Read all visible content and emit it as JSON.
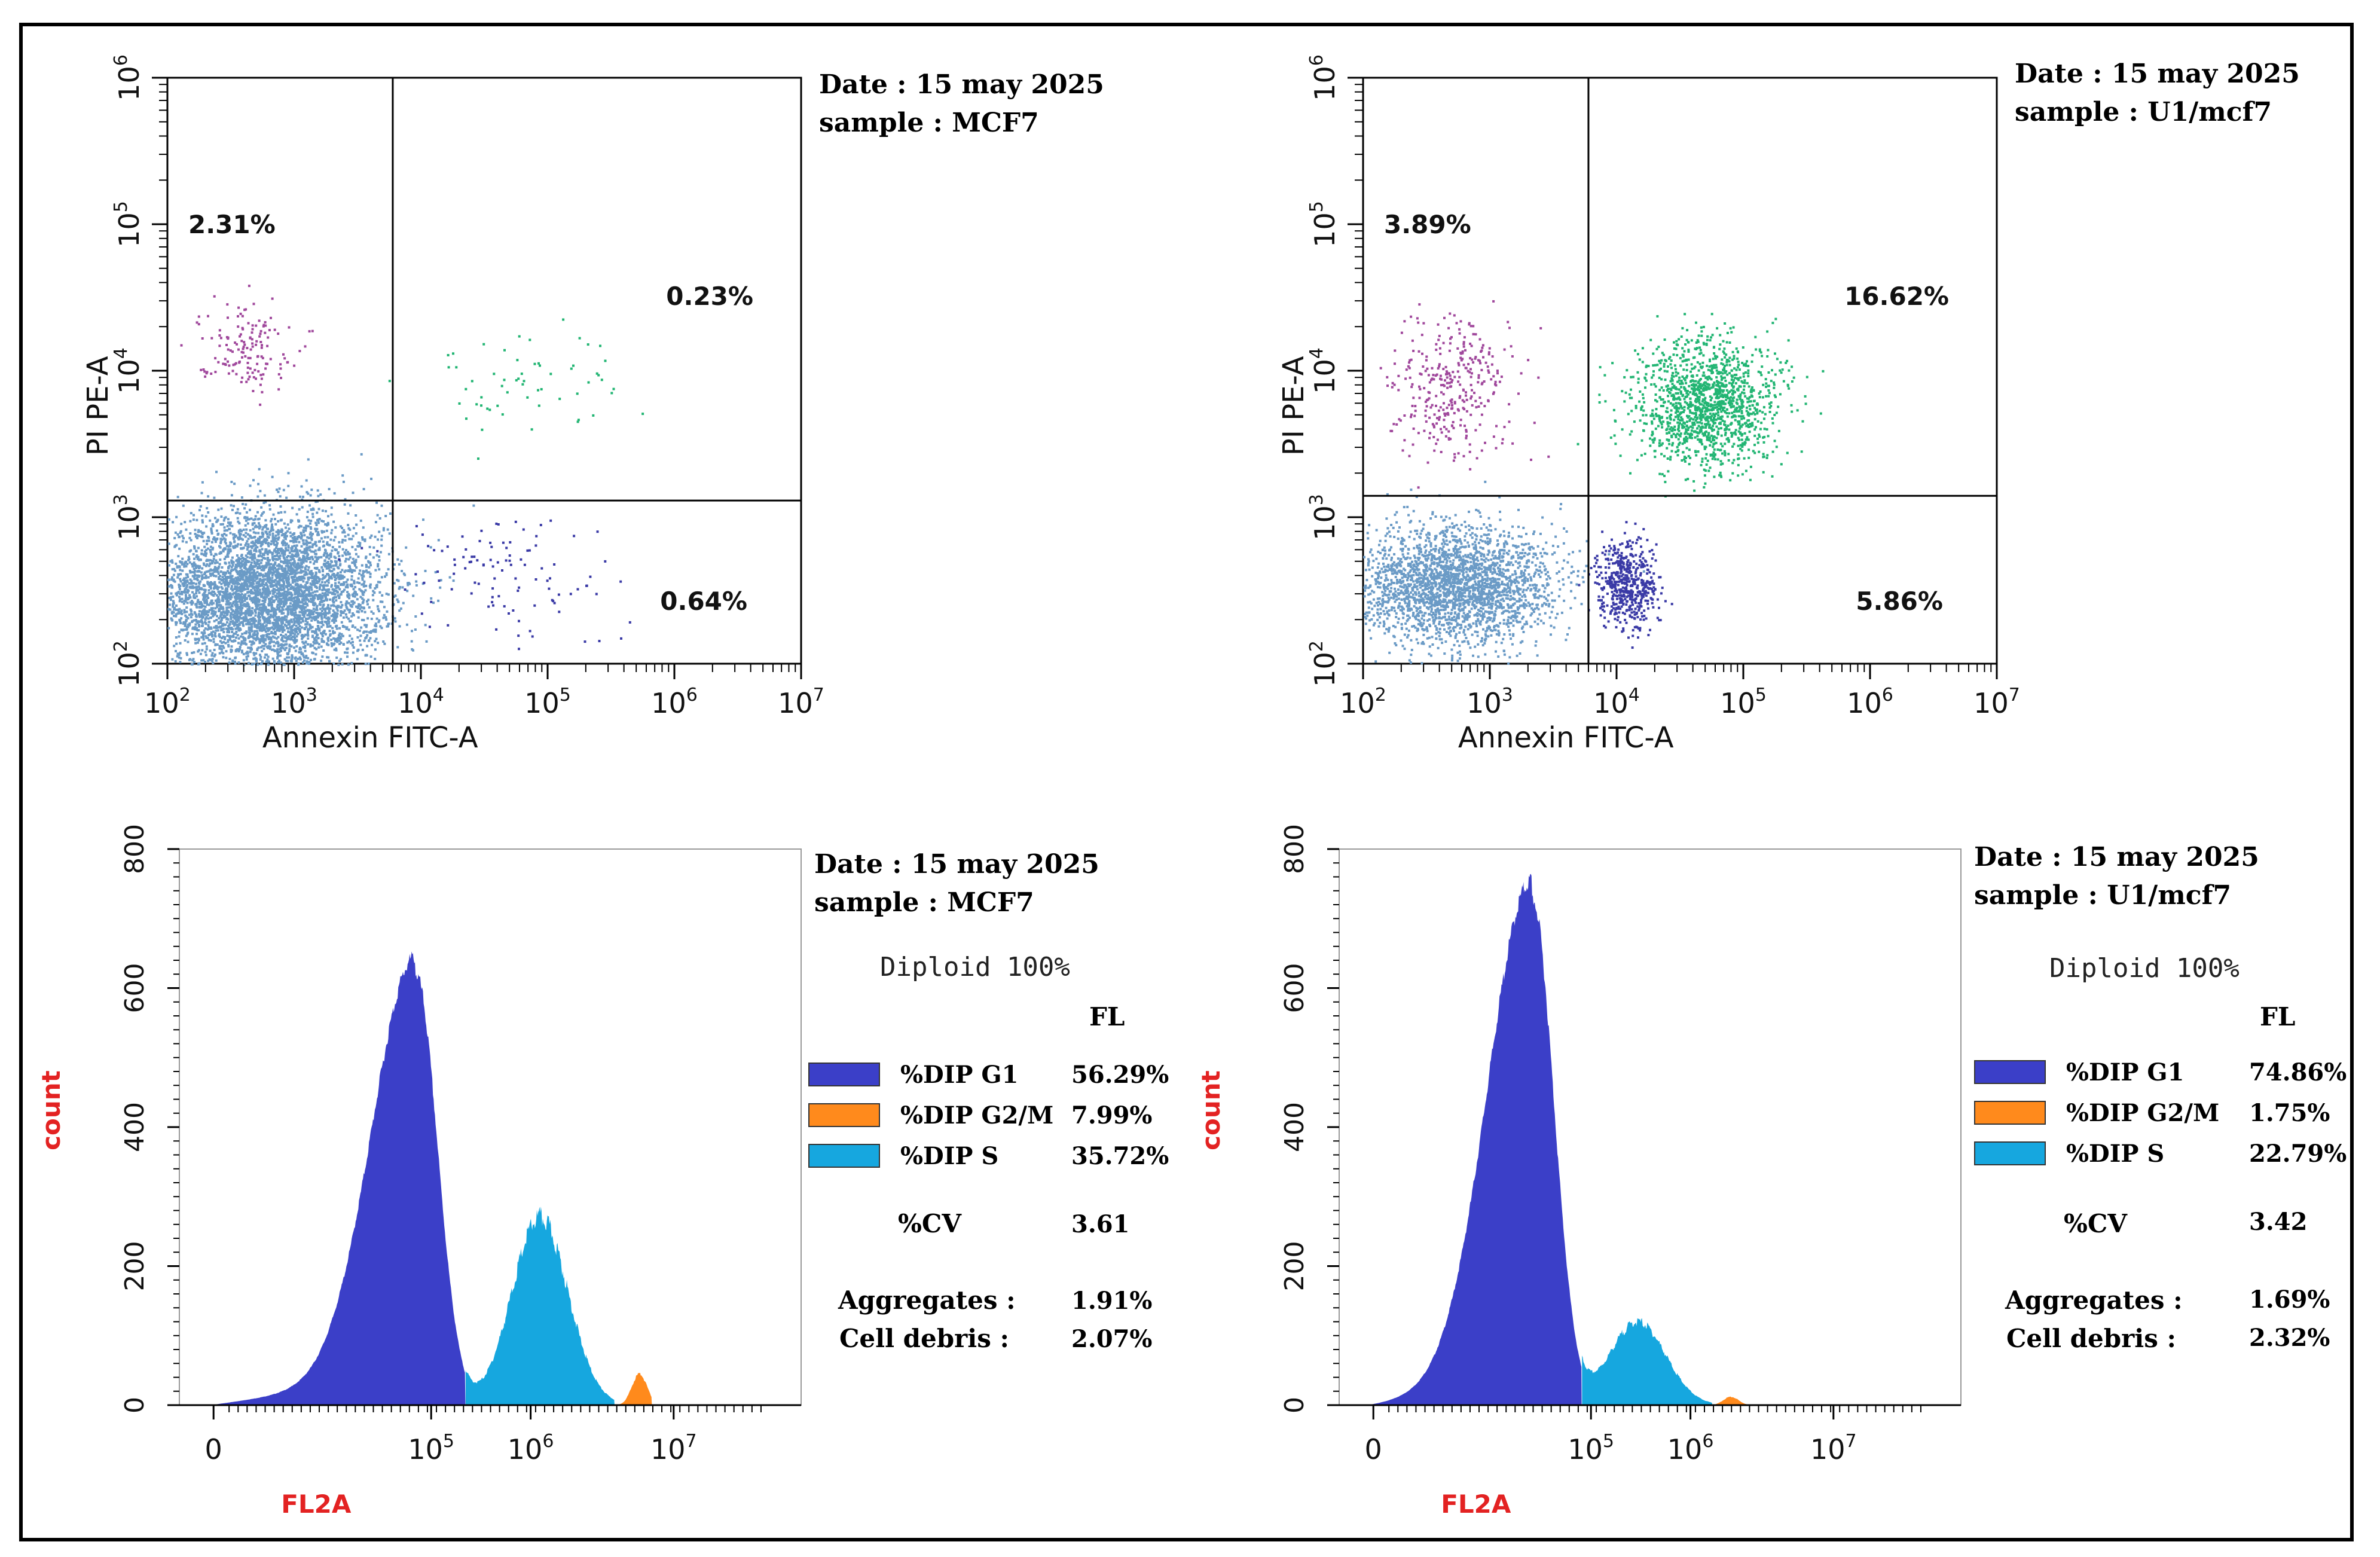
{
  "panels_scatter": [
    {
      "date_label": "Date : 15 may 2025",
      "sample_label": "sample : MCF7",
      "chart_data": {
        "type": "scatter",
        "xlabel": "Annexin FITC-A",
        "ylabel": "PI PE-A",
        "x_scale": "log",
        "y_scale": "log",
        "xlim": [
          100,
          10000000
        ],
        "ylim": [
          100,
          1000000
        ],
        "x_ticks": [
          "10^2",
          "10^3",
          "10^4",
          "10^5",
          "10^6",
          "10^7"
        ],
        "y_ticks": [
          "10^2",
          "10^3",
          "10^4",
          "10^5",
          "10^6"
        ],
        "gate_x": 6000,
        "gate_y": 1300,
        "quadrants": {
          "upper_left": "2.31%",
          "upper_right": "0.23%",
          "lower_right": "0.64%"
        },
        "populations": [
          {
            "name": "",
            "color": "#6b9bc6",
            "count": 5200,
            "center": [
              600,
              300
            ],
            "spread": [
              0.45,
              0.28
            ]
          },
          {
            "name": "",
            "color": "#a0489c",
            "count": 150,
            "center": [
              400,
              15000
            ],
            "spread": [
              0.18,
              0.14
            ]
          },
          {
            "name": "",
            "color": "#22b573",
            "count": 60,
            "center": [
              60000,
              9000
            ],
            "spread": [
              0.45,
              0.18
            ]
          },
          {
            "name": "",
            "color": "#3a3aa6",
            "count": 110,
            "center": [
              40000,
              400
            ],
            "spread": [
              0.45,
              0.25
            ]
          }
        ]
      }
    },
    {
      "date_label": "Date : 15 may 2025",
      "sample_label": "sample :   U1/mcf7",
      "chart_data": {
        "type": "scatter",
        "xlabel": "Annexin FITC-A",
        "ylabel": "PI PE-A",
        "x_scale": "log",
        "y_scale": "log",
        "xlim": [
          100,
          10000000
        ],
        "ylim": [
          100,
          1000000
        ],
        "x_ticks": [
          "10^2",
          "10^3",
          "10^4",
          "10^5",
          "10^6",
          "10^7"
        ],
        "y_ticks": [
          "10^2",
          "10^3",
          "10^4",
          "10^5",
          "10^6"
        ],
        "gate_x": 6000,
        "gate_y": 1400,
        "quadrants": {
          "upper_left": "3.89%",
          "upper_right": "16.62%",
          "lower_right": "5.86%"
        },
        "populations": [
          {
            "name": "",
            "color": "#6b9bc6",
            "count": 2600,
            "center": [
              500,
              350
            ],
            "spread": [
              0.4,
              0.2
            ]
          },
          {
            "name": "",
            "color": "#a0489c",
            "count": 340,
            "center": [
              500,
              8000
            ],
            "spread": [
              0.25,
              0.25
            ]
          },
          {
            "name": "",
            "color": "#22b573",
            "count": 1400,
            "center": [
              50000,
              6000
            ],
            "spread": [
              0.28,
              0.22
            ]
          },
          {
            "name": "",
            "color": "#3a3aa6",
            "count": 520,
            "center": [
              12000,
              350
            ],
            "spread": [
              0.12,
              0.16
            ]
          }
        ]
      }
    }
  ],
  "panels_hist": [
    {
      "date_label": "Date : 15 may 2025",
      "sample_label": "sample : MCF7",
      "diploid_label": "Diploid 100%",
      "fl_header": "FL",
      "legend": [
        {
          "label": "%DIP G1",
          "value": "56.29%",
          "color": "#3b3fc8"
        },
        {
          "label": "%DIP G2/M",
          "value": "7.99%",
          "color": "#ff8a1c"
        },
        {
          "label": "%DIP S",
          "value": "35.72%",
          "color": "#16a7df"
        }
      ],
      "cv_label": "%CV",
      "cv_value": "3.61",
      "aggregates_label": "Aggregates :",
      "aggregates_value": "1.91%",
      "debris_label": "Cell debris  :",
      "debris_value": "2.07%",
      "chart_data": {
        "type": "area",
        "xlabel": "FL2A",
        "ylabel": "count",
        "ylim": [
          0,
          800
        ],
        "y_ticks": [
          "0",
          "200",
          "400",
          "600",
          "800"
        ],
        "x_ticks": [
          "0",
          "10^5",
          "10^6",
          "10^7"
        ],
        "g1": {
          "peak": 620,
          "mode": 0.38
        },
        "s": {
          "peak": 270,
          "mode": 0.58
        },
        "g2m": {
          "peak": 45,
          "mode": 0.74
        }
      }
    },
    {
      "date_label": "Date : 15 may 2025",
      "sample_label": "sample :   U1/mcf7",
      "diploid_label": "Diploid 100%",
      "fl_header": "FL",
      "legend": [
        {
          "label": "%DIP G1",
          "value": "74.86%",
          "color": "#3b3fc8"
        },
        {
          "label": "%DIP G2/M",
          "value": "1.75%",
          "color": "#ff8a1c"
        },
        {
          "label": "%DIP S",
          "value": "22.79%",
          "color": "#16a7df"
        }
      ],
      "cv_label": "%CV",
      "cv_value": "3.42",
      "aggregates_label": "Aggregates :",
      "aggregates_value": "1.69%",
      "debris_label": "Cell debris  :",
      "debris_value": "2.32%",
      "chart_data": {
        "type": "area",
        "xlabel": "FL2A",
        "ylabel": "count",
        "ylim": [
          0,
          800
        ],
        "y_ticks": [
          "0",
          "200",
          "400",
          "600",
          "800"
        ],
        "x_ticks": [
          "0",
          "10^5",
          "10^6",
          "10^7"
        ],
        "g1": {
          "peak": 730,
          "mode": 0.31
        },
        "s": {
          "peak": 120,
          "mode": 0.48
        },
        "g2m": {
          "peak": 12,
          "mode": 0.63
        }
      }
    }
  ]
}
